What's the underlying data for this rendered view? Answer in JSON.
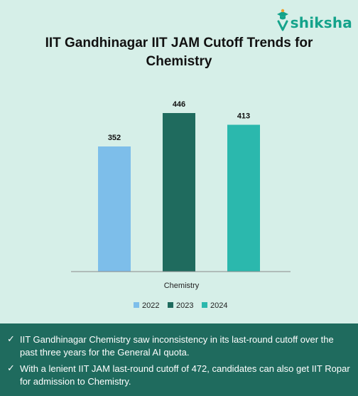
{
  "brand": {
    "logo_text": "shiksha"
  },
  "chart_data": {
    "type": "bar",
    "title": "IIT Gandhinagar IIT JAM Cutoff Trends for Chemistry",
    "categories": [
      "Chemistry"
    ],
    "xlabel": "",
    "ylabel": "",
    "ylim": [
      0,
      500
    ],
    "grid": false,
    "legend_position": "bottom",
    "series": [
      {
        "name": "2022",
        "values": [
          352
        ],
        "color": "#7dbeea"
      },
      {
        "name": "2023",
        "values": [
          446
        ],
        "color": "#1f6b5e"
      },
      {
        "name": "2024",
        "values": [
          413
        ],
        "color": "#2bb8ad"
      }
    ]
  },
  "notes": [
    {
      "icon": "check-icon",
      "text": "IIT Gandhinagar Chemistry saw inconsistency in its last-round cutoff over the past three years for the General AI quota."
    },
    {
      "icon": "check-icon",
      "text": "With a lenient IIT JAM last-round cutoff of 472, candidates can also get IIT Ropar for admission to Chemistry."
    }
  ]
}
